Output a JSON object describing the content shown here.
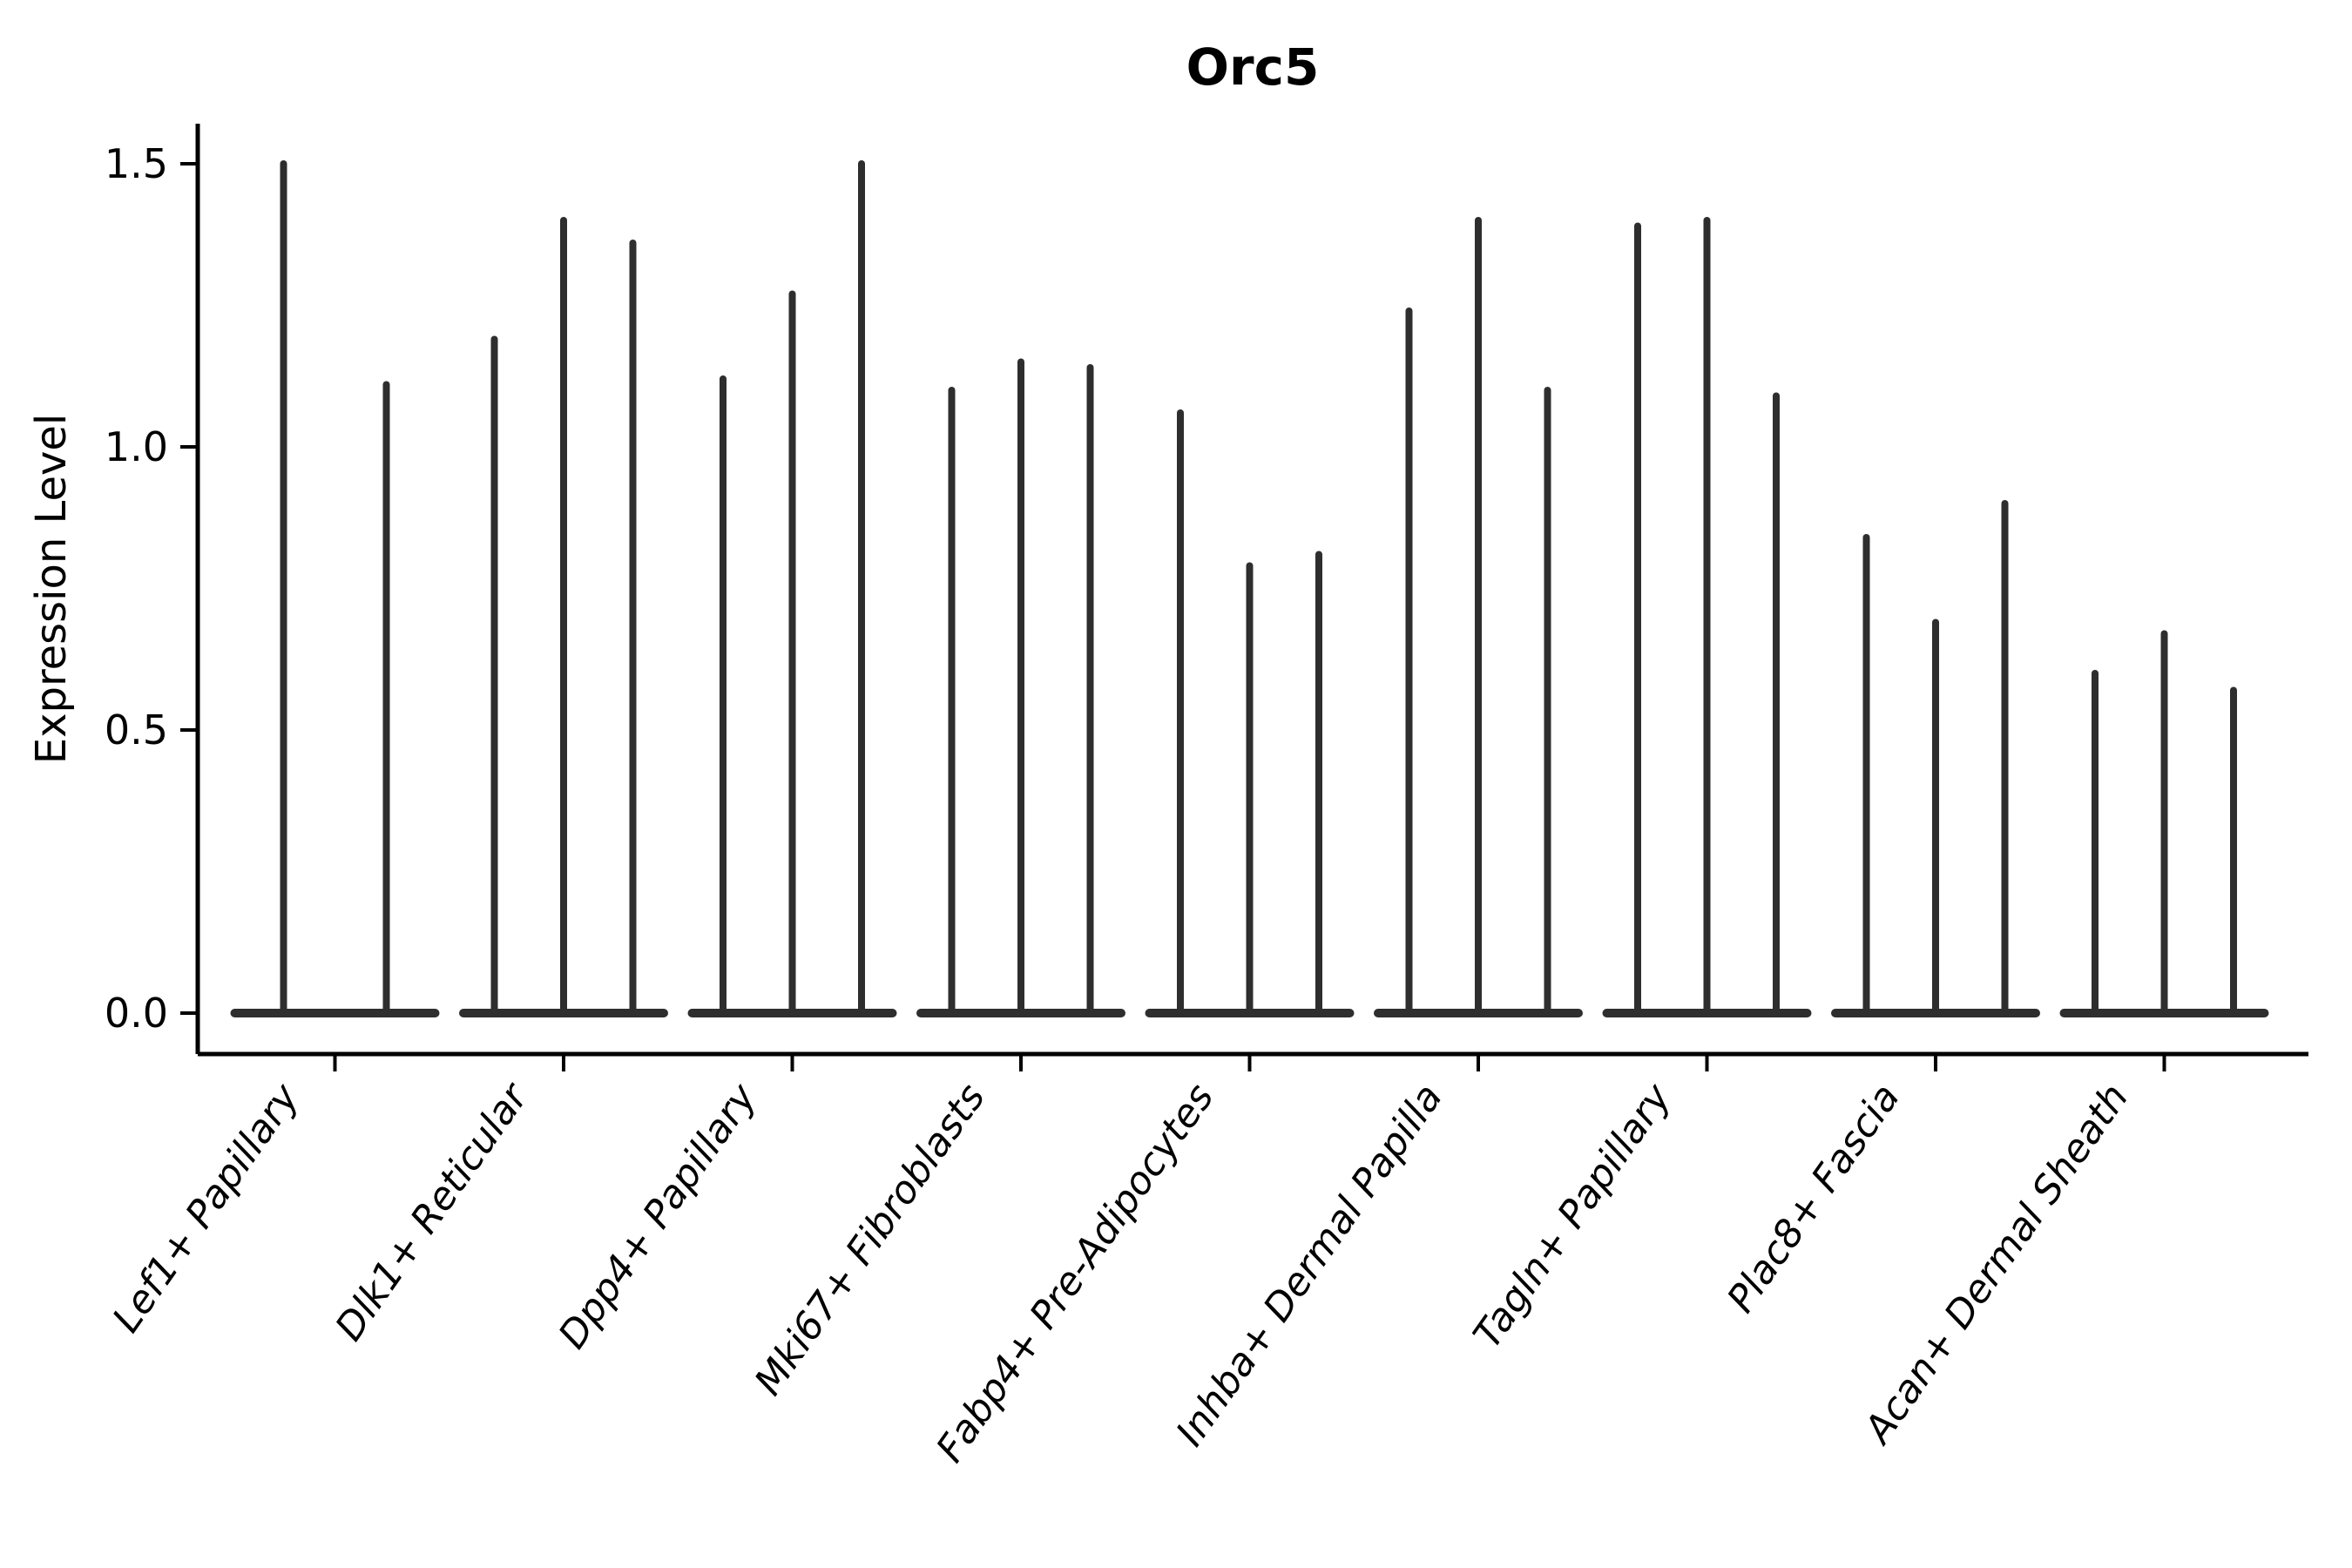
{
  "title": "Orc5",
  "chart_data": {
    "type": "violin",
    "title": "Orc5",
    "ylabel": "Expression Level",
    "xlabel": "",
    "ytick_labels": [
      "0.0",
      "0.5",
      "1.0",
      "1.5"
    ],
    "ytick_values": [
      0.0,
      0.5,
      1.0,
      1.5
    ],
    "ylim": [
      0.0,
      1.57
    ],
    "grid": false,
    "legend": "none",
    "xtick_rotation_deg": 55,
    "categories": [
      "Lef1+ Papillary",
      "Dlk1+ Reticular",
      "Dpp4+ Papillary",
      "Mki67+ Fibroblasts",
      "Fabp4+ Pre-Adipocytes",
      "Inhba+ Dermal Papilla",
      "Tagln+ Papillary",
      "Plac8+ Fascia",
      "Acan+ Dermal Sheath"
    ],
    "groups": [
      {
        "category": "Lef1+ Papillary",
        "violin_peaks": [
          1.5,
          1.11
        ]
      },
      {
        "category": "Dlk1+ Reticular",
        "violin_peaks": [
          1.19,
          1.4,
          1.36
        ]
      },
      {
        "category": "Dpp4+ Papillary",
        "violin_peaks": [
          1.12,
          1.27,
          1.5
        ]
      },
      {
        "category": "Mki67+ Fibroblasts",
        "violin_peaks": [
          1.1,
          1.15,
          1.14
        ]
      },
      {
        "category": "Fabp4+ Pre-Adipocytes",
        "violin_peaks": [
          1.06,
          0.79,
          0.81
        ]
      },
      {
        "category": "Inhba+ Dermal Papilla",
        "violin_peaks": [
          1.24,
          1.4,
          1.1
        ]
      },
      {
        "category": "Tagln+ Papillary",
        "violin_peaks": [
          1.39,
          1.4,
          1.09
        ]
      },
      {
        "category": "Plac8+ Fascia",
        "violin_peaks": [
          0.84,
          0.69,
          0.9
        ]
      },
      {
        "category": "Acan+ Dermal Sheath",
        "violin_peaks": [
          0.6,
          0.67,
          0.57
        ]
      }
    ],
    "colors": {
      "violin": "#2e2e2e",
      "axis": "#000000",
      "text": "#000000",
      "background": "#ffffff"
    },
    "description": "Violin plot of Orc5 expression per fibroblast subtype; each category shows 2-3 collapsed thin violins: a flat dark base at 0 (most cells zero) with a narrow spike up to the listed maximum expression value."
  }
}
